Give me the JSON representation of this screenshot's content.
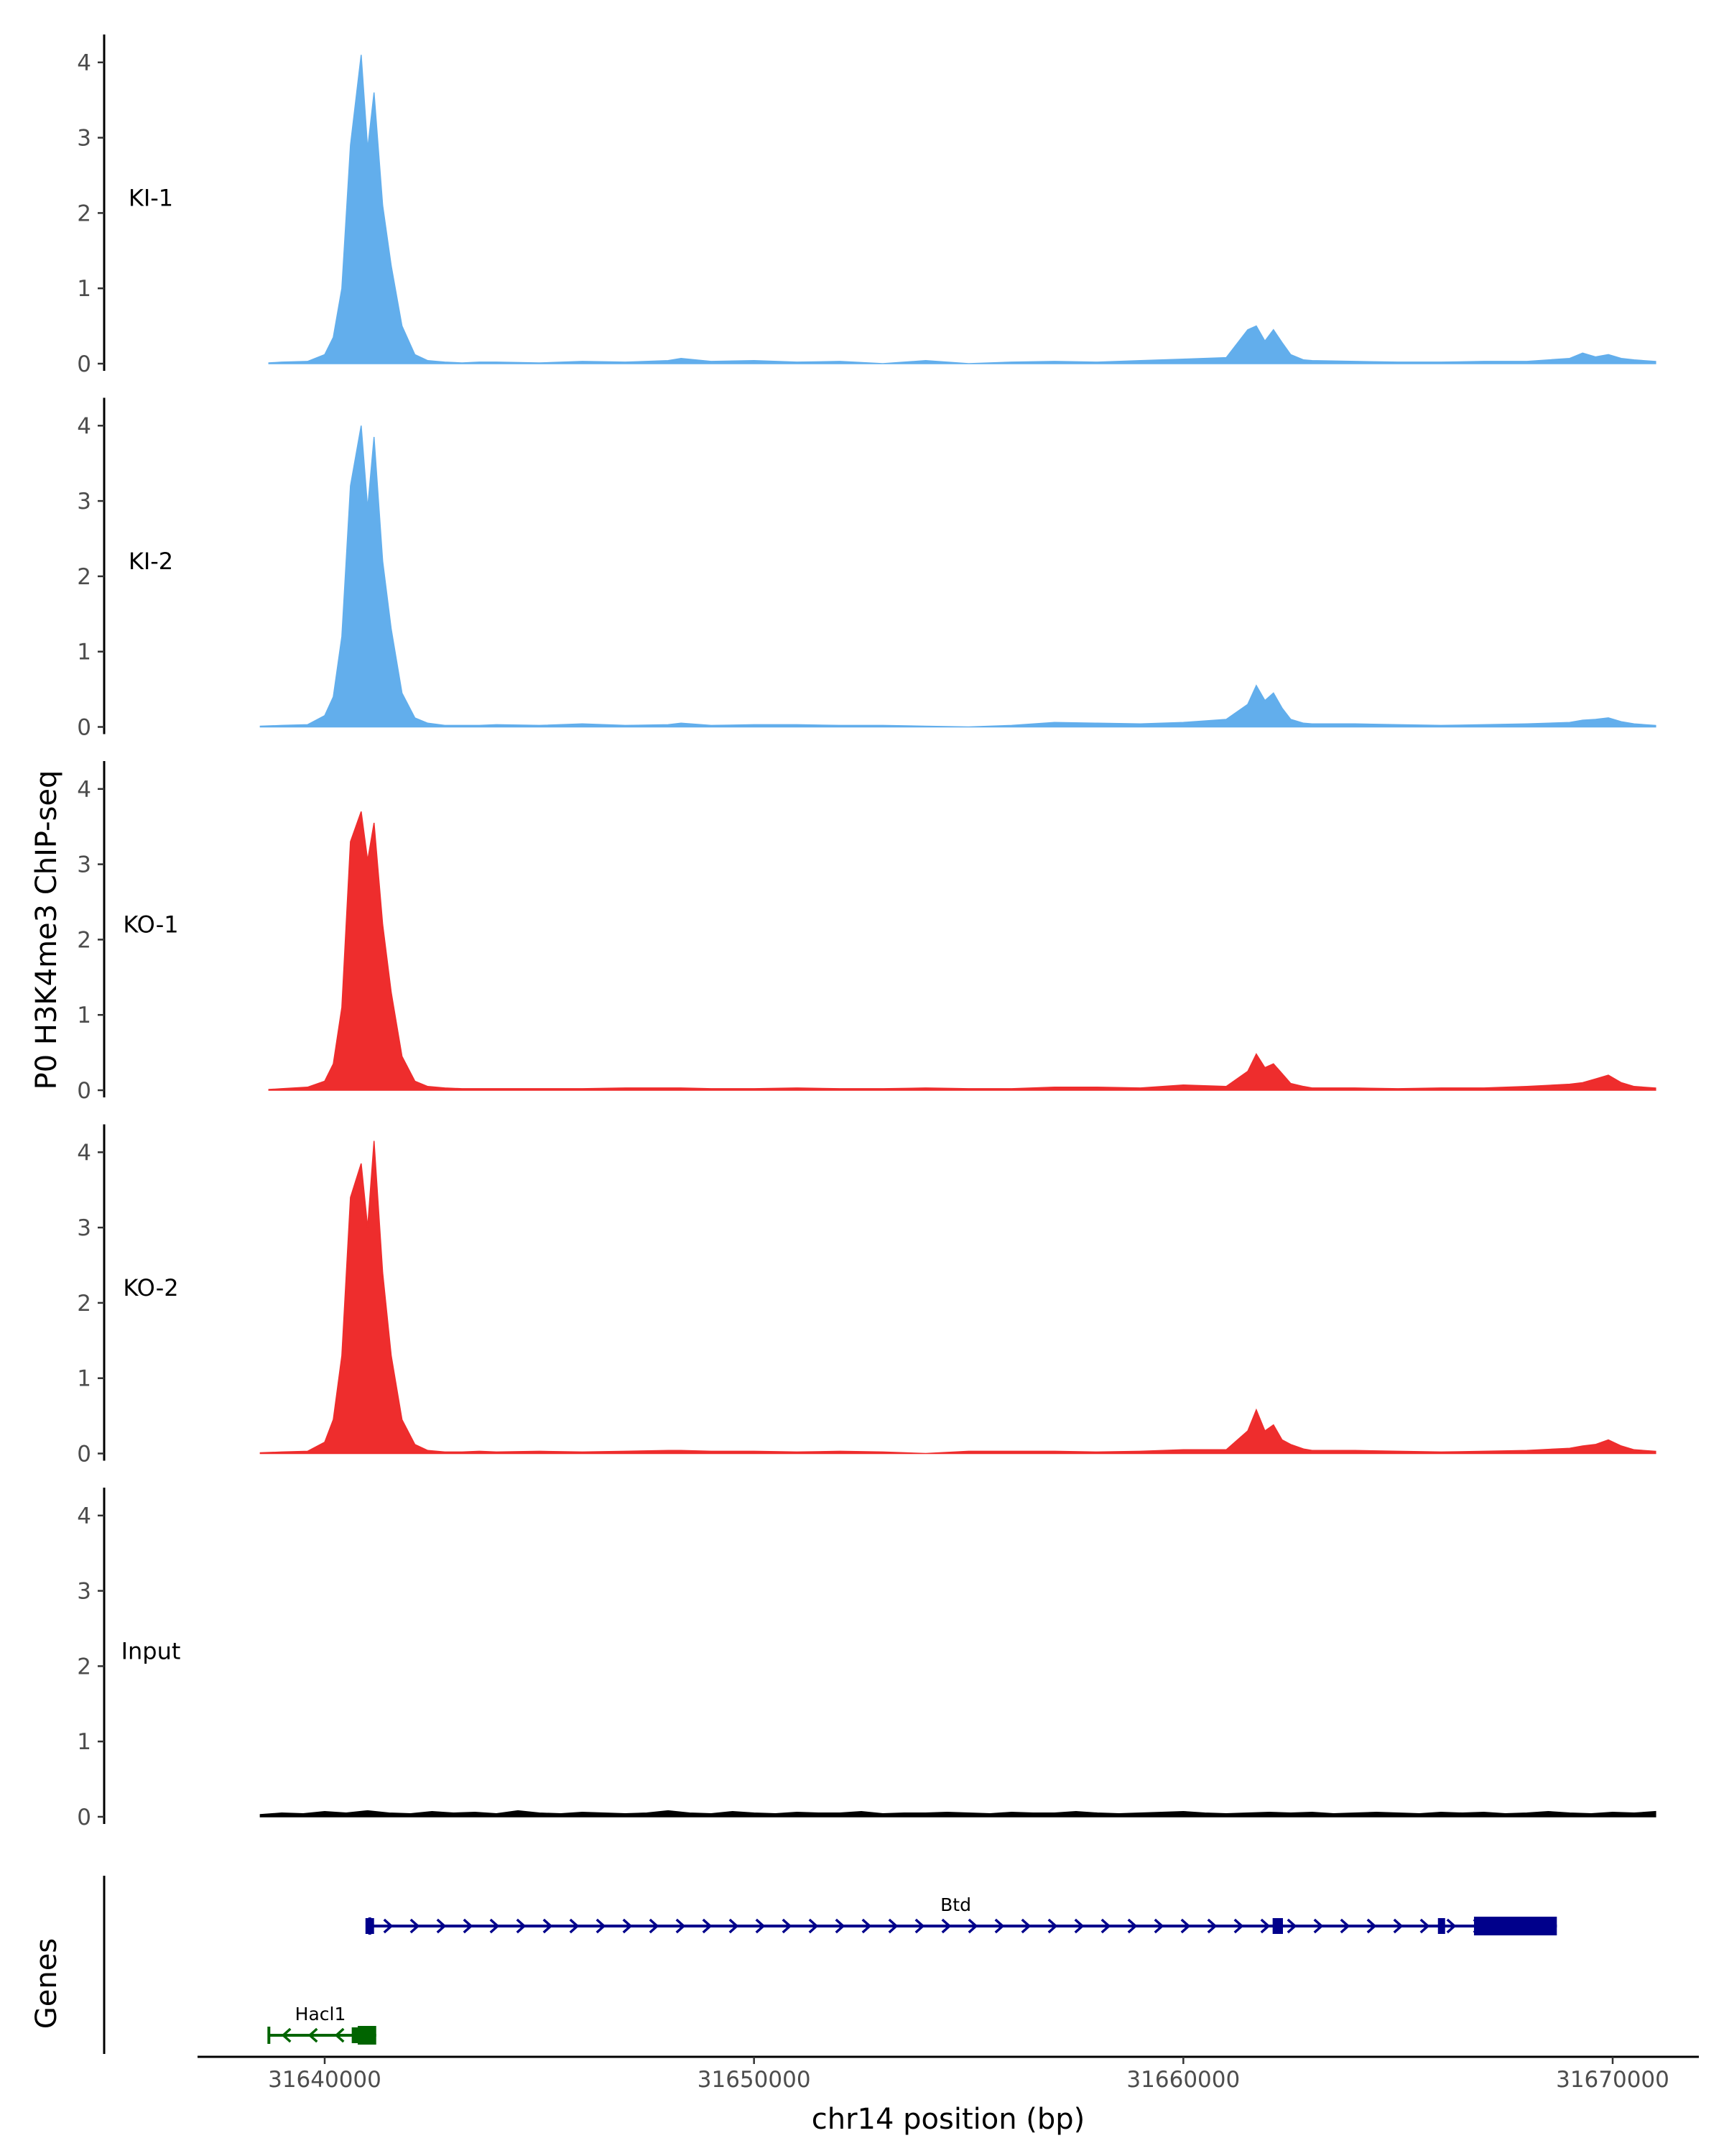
{
  "chart_data": {
    "type": "area",
    "title": "",
    "ylabel": "P0 H3K4me3 ChIP-seq",
    "xlabel": "chr14 position (bp)",
    "xlim": [
      31637000,
      31673000
    ],
    "ylim": [
      0,
      4.3
    ],
    "y_ticks": [
      "0",
      "1",
      "2",
      "3",
      "4"
    ],
    "x_ticks": [
      "31640000",
      "31650000",
      "31660000",
      "31670000"
    ],
    "x_tick_values": [
      31640000,
      31650000,
      31660000,
      31670000
    ],
    "colors": {
      "KI": "#62aeec",
      "KO": "#ee2d2d",
      "Input": "#000000",
      "Btd": "#00008b",
      "Hacl1": "#006400"
    },
    "tracks": [
      {
        "name": "KI-1",
        "color": "#62aeec",
        "x": [
          31638700,
          31639000,
          31639600,
          31640000,
          31640200,
          31640400,
          31640600,
          31640850,
          31641000,
          31641150,
          31641350,
          31641550,
          31641800,
          31642100,
          31642400,
          31642800,
          31643200,
          31643600,
          31644000,
          31645000,
          31646000,
          31647000,
          31648000,
          31648300,
          31649000,
          31650000,
          31651000,
          31652000,
          31653000,
          31654000,
          31655000,
          31656000,
          31657000,
          31658000,
          31659000,
          31660000,
          31661000,
          31661500,
          31661700,
          31661900,
          31662100,
          31662300,
          31662500,
          31662800,
          31663000,
          31664000,
          31665000,
          31666000,
          31667000,
          31668000,
          31669000,
          31669300,
          31669600,
          31669900,
          31670200,
          31670500,
          31671000
        ],
        "y": [
          0.01,
          0.02,
          0.03,
          0.12,
          0.35,
          1.0,
          2.9,
          4.1,
          2.85,
          3.6,
          2.1,
          1.3,
          0.5,
          0.12,
          0.04,
          0.02,
          0.01,
          0.02,
          0.02,
          0.01,
          0.03,
          0.02,
          0.04,
          0.07,
          0.03,
          0.04,
          0.02,
          0.03,
          0.0,
          0.04,
          0.0,
          0.02,
          0.03,
          0.02,
          0.04,
          0.06,
          0.08,
          0.45,
          0.5,
          0.3,
          0.45,
          0.28,
          0.12,
          0.05,
          0.04,
          0.03,
          0.02,
          0.02,
          0.03,
          0.03,
          0.07,
          0.14,
          0.09,
          0.12,
          0.07,
          0.05,
          0.03
        ]
      },
      {
        "name": "KI-2",
        "color": "#62aeec",
        "x": [
          31638500,
          31639000,
          31639600,
          31640000,
          31640200,
          31640400,
          31640600,
          31640850,
          31641000,
          31641150,
          31641350,
          31641550,
          31641800,
          31642100,
          31642400,
          31642800,
          31643200,
          31643600,
          31644000,
          31645000,
          31646000,
          31647000,
          31648000,
          31648300,
          31649000,
          31650000,
          31651000,
          31652000,
          31653000,
          31654000,
          31655000,
          31656000,
          31657000,
          31658000,
          31659000,
          31660000,
          31661000,
          31661500,
          31661700,
          31661900,
          31662100,
          31662300,
          31662500,
          31662800,
          31663000,
          31664000,
          31665000,
          31666000,
          31667000,
          31668000,
          31669000,
          31669300,
          31669600,
          31669900,
          31670200,
          31670500,
          31671000
        ],
        "y": [
          0.01,
          0.02,
          0.03,
          0.15,
          0.4,
          1.2,
          3.2,
          4.0,
          2.9,
          3.85,
          2.2,
          1.3,
          0.45,
          0.12,
          0.05,
          0.02,
          0.02,
          0.02,
          0.03,
          0.02,
          0.04,
          0.02,
          0.03,
          0.05,
          0.02,
          0.03,
          0.03,
          0.02,
          0.02,
          0.01,
          0.0,
          0.02,
          0.06,
          0.05,
          0.04,
          0.06,
          0.1,
          0.3,
          0.55,
          0.35,
          0.45,
          0.25,
          0.1,
          0.05,
          0.04,
          0.04,
          0.03,
          0.02,
          0.03,
          0.04,
          0.06,
          0.09,
          0.1,
          0.12,
          0.07,
          0.04,
          0.02
        ]
      },
      {
        "name": "KO-1",
        "color": "#ee2d2d",
        "x": [
          31638700,
          31639000,
          31639600,
          31640000,
          31640200,
          31640400,
          31640600,
          31640850,
          31641000,
          31641150,
          31641350,
          31641550,
          31641800,
          31642100,
          31642400,
          31642800,
          31643200,
          31643600,
          31644000,
          31645000,
          31646000,
          31647000,
          31648000,
          31648300,
          31649000,
          31650000,
          31651000,
          31652000,
          31653000,
          31654000,
          31655000,
          31656000,
          31657000,
          31658000,
          31659000,
          31660000,
          31661000,
          31661500,
          31661700,
          31661900,
          31662100,
          31662300,
          31662500,
          31662800,
          31663000,
          31664000,
          31665000,
          31666000,
          31667000,
          31668000,
          31669000,
          31669300,
          31669600,
          31669900,
          31670200,
          31670500,
          31671000
        ],
        "y": [
          0.01,
          0.02,
          0.04,
          0.12,
          0.35,
          1.1,
          3.3,
          3.7,
          3.05,
          3.55,
          2.2,
          1.3,
          0.45,
          0.12,
          0.05,
          0.03,
          0.02,
          0.02,
          0.02,
          0.02,
          0.02,
          0.03,
          0.03,
          0.03,
          0.02,
          0.02,
          0.03,
          0.02,
          0.02,
          0.03,
          0.02,
          0.02,
          0.04,
          0.04,
          0.03,
          0.07,
          0.05,
          0.25,
          0.48,
          0.3,
          0.35,
          0.22,
          0.09,
          0.05,
          0.03,
          0.03,
          0.02,
          0.03,
          0.03,
          0.05,
          0.08,
          0.1,
          0.15,
          0.2,
          0.1,
          0.05,
          0.03
        ]
      },
      {
        "name": "KO-2",
        "color": "#ee2d2d",
        "x": [
          31638500,
          31639000,
          31639600,
          31640000,
          31640200,
          31640400,
          31640600,
          31640850,
          31641000,
          31641150,
          31641350,
          31641550,
          31641800,
          31642100,
          31642400,
          31642800,
          31643200,
          31643600,
          31644000,
          31645000,
          31646000,
          31647000,
          31648000,
          31648300,
          31649000,
          31650000,
          31651000,
          31652000,
          31653000,
          31654000,
          31655000,
          31656000,
          31657000,
          31658000,
          31659000,
          31660000,
          31661000,
          31661500,
          31661700,
          31661900,
          31662100,
          31662300,
          31662500,
          31662800,
          31663000,
          31664000,
          31665000,
          31666000,
          31667000,
          31668000,
          31669000,
          31669300,
          31669600,
          31669900,
          31670200,
          31670500,
          31671000
        ],
        "y": [
          0.01,
          0.02,
          0.03,
          0.15,
          0.45,
          1.3,
          3.4,
          3.85,
          3.0,
          4.15,
          2.4,
          1.3,
          0.45,
          0.12,
          0.04,
          0.02,
          0.02,
          0.03,
          0.02,
          0.03,
          0.02,
          0.03,
          0.04,
          0.04,
          0.03,
          0.03,
          0.02,
          0.03,
          0.02,
          0.0,
          0.03,
          0.03,
          0.03,
          0.02,
          0.03,
          0.05,
          0.05,
          0.3,
          0.58,
          0.3,
          0.38,
          0.18,
          0.12,
          0.06,
          0.04,
          0.04,
          0.03,
          0.02,
          0.03,
          0.04,
          0.07,
          0.1,
          0.12,
          0.18,
          0.1,
          0.05,
          0.03
        ]
      },
      {
        "name": "Input",
        "color": "#000000",
        "x": [
          31638500,
          31639000,
          31639500,
          31640000,
          31640500,
          31641000,
          31641500,
          31642000,
          31642500,
          31643000,
          31643500,
          31644000,
          31644500,
          31645000,
          31645500,
          31646000,
          31646500,
          31647000,
          31647500,
          31648000,
          31648500,
          31649000,
          31649500,
          31650000,
          31650500,
          31651000,
          31651500,
          31652000,
          31652500,
          31653000,
          31653500,
          31654000,
          31654500,
          31655000,
          31655500,
          31656000,
          31656500,
          31657000,
          31657500,
          31658000,
          31658500,
          31659000,
          31659500,
          31660000,
          31660500,
          31661000,
          31661500,
          31662000,
          31662500,
          31663000,
          31663500,
          31664000,
          31664500,
          31665000,
          31665500,
          31666000,
          31666500,
          31667000,
          31667500,
          31668000,
          31668500,
          31669000,
          31669500,
          31670000,
          31670500,
          31671000
        ],
        "y": [
          0.03,
          0.05,
          0.04,
          0.07,
          0.05,
          0.08,
          0.05,
          0.04,
          0.07,
          0.05,
          0.06,
          0.04,
          0.08,
          0.05,
          0.04,
          0.06,
          0.05,
          0.04,
          0.05,
          0.08,
          0.05,
          0.04,
          0.07,
          0.05,
          0.04,
          0.06,
          0.05,
          0.05,
          0.07,
          0.04,
          0.05,
          0.05,
          0.06,
          0.05,
          0.04,
          0.06,
          0.05,
          0.05,
          0.07,
          0.05,
          0.04,
          0.05,
          0.06,
          0.07,
          0.05,
          0.04,
          0.05,
          0.06,
          0.05,
          0.06,
          0.04,
          0.05,
          0.06,
          0.05,
          0.04,
          0.06,
          0.05,
          0.06,
          0.04,
          0.05,
          0.07,
          0.05,
          0.04,
          0.06,
          0.05,
          0.07
        ]
      }
    ],
    "genes_label": "Genes",
    "genes": [
      {
        "name": "Btd",
        "strand": "+",
        "color": "#00008b",
        "start": 31641050,
        "end": 31668700,
        "exons": [
          [
            31640950,
            31641150
          ],
          [
            31662080,
            31662320
          ],
          [
            31665930,
            31666070
          ],
          [
            31666770,
            31668700
          ]
        ]
      },
      {
        "name": "Hacl1",
        "strand": "-",
        "color": "#006400",
        "start": 31638700,
        "end": 31641200,
        "exons": [
          [
            31640630,
            31640720
          ],
          [
            31640770,
            31641200
          ]
        ]
      }
    ]
  }
}
